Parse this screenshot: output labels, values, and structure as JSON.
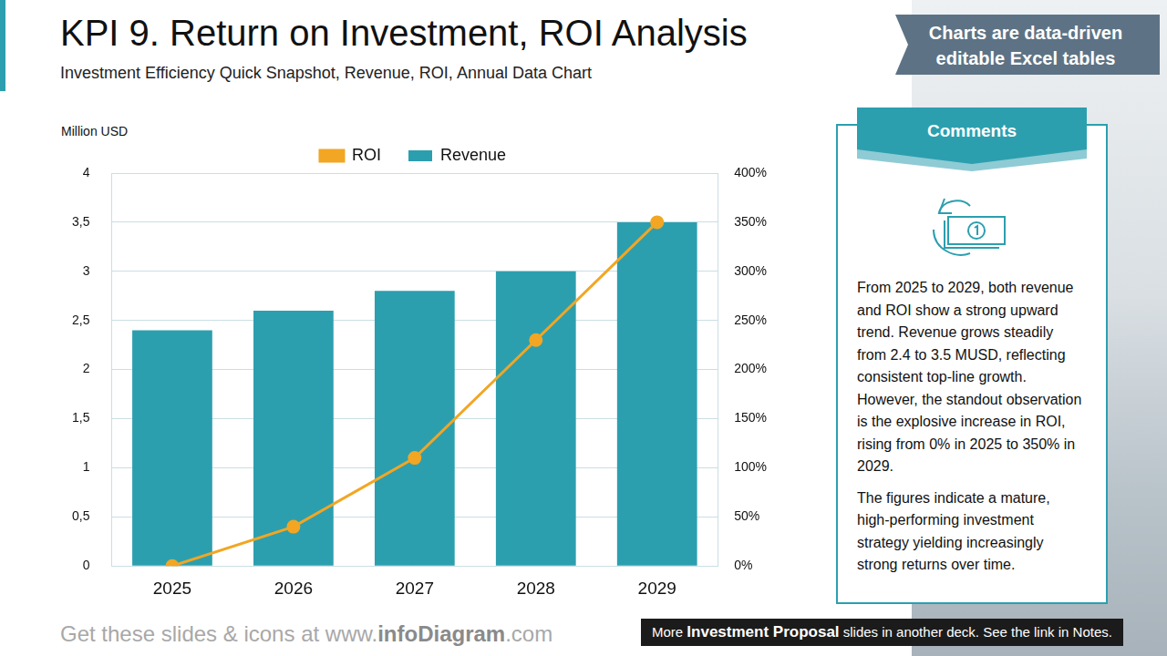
{
  "header": {
    "title": "KPI 9. Return on Investment, ROI Analysis",
    "subtitle": "Investment Efficiency Quick Snapshot, Revenue, ROI, Annual Data Chart",
    "badge": "Charts are data-driven editable Excel tables"
  },
  "chart_data": {
    "type": "bar",
    "y_label": "Million USD",
    "categories": [
      "2025",
      "2026",
      "2027",
      "2028",
      "2029"
    ],
    "series": [
      {
        "name": "Revenue",
        "type": "bar",
        "color": "#2c9faf",
        "values": [
          2.4,
          2.6,
          2.8,
          3.0,
          3.5
        ]
      },
      {
        "name": "ROI",
        "type": "line",
        "color": "#f2a623",
        "marker": "circle",
        "axis": "y2",
        "values": [
          0,
          40,
          110,
          230,
          350
        ]
      }
    ],
    "ylim": [
      0,
      4
    ],
    "yticks": [
      0,
      {
        "value": 0.5,
        "label": "0,5"
      },
      1,
      {
        "value": 1.5,
        "label": "1,5"
      },
      2,
      {
        "value": 2.5,
        "label": "2,5"
      },
      3,
      {
        "value": 3.5,
        "label": "3,5"
      },
      4
    ],
    "y2lim": [
      0,
      400
    ],
    "y2ticks": [
      {
        "value": 0,
        "label": "0%"
      },
      {
        "value": 50,
        "label": "50%"
      },
      {
        "value": 100,
        "label": "100%"
      },
      {
        "value": 150,
        "label": "150%"
      },
      {
        "value": 200,
        "label": "200%"
      },
      {
        "value": 250,
        "label": "250%"
      },
      {
        "value": 300,
        "label": "300%"
      },
      {
        "value": 350,
        "label": "350%"
      },
      {
        "value": 400,
        "label": "400%"
      }
    ],
    "grid": true,
    "legend": "top"
  },
  "comments": {
    "title": "Comments",
    "paragraphs": [
      "From 2025 to 2029, both revenue and ROI show a strong upward trend. Revenue grows steadily from 2.4 to 3.5 MUSD, reflecting consistent top-line growth. However, the standout observation is the explosive increase in ROI, rising from 0% in 2025 to 350% in 2029.",
      "The figures indicate a mature, high-performing investment strategy yielding increasingly strong returns over time."
    ]
  },
  "footer": {
    "left": [
      "Get these slides & icons at www.",
      "infoDiagram",
      ".com"
    ],
    "right": [
      "More ",
      "Investment Proposal",
      " slides in another deck. See the link in Notes."
    ]
  }
}
